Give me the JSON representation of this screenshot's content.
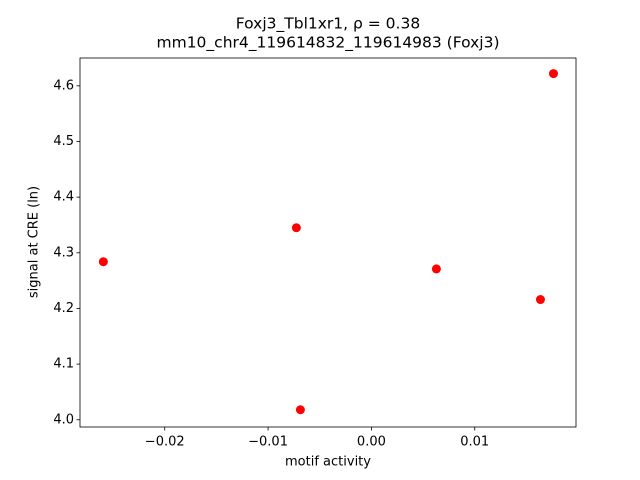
{
  "chart_data": {
    "type": "scatter",
    "title": [
      "Foxj3_Tbl1xr1, ρ = 0.38",
      "mm10_chr4_119614832_119614983 (Foxj3)"
    ],
    "xlabel": "motif activity",
    "ylabel": "signal at CRE (ln)",
    "color": "#ff0000",
    "x": [
      -0.02594,
      -0.00726,
      -0.00687,
      0.00629,
      0.01636,
      0.01762
    ],
    "values": [
      4.284,
      4.345,
      4.018,
      4.271,
      4.216,
      4.622
    ],
    "xlim": [
      -0.0282,
      0.0198
    ],
    "ylim": [
      3.987,
      4.65
    ],
    "xticks": [
      {
        "value": -0.02,
        "label": "−0.02"
      },
      {
        "value": -0.01,
        "label": "−0.01"
      },
      {
        "value": 0,
        "label": "0.00"
      },
      0.01
    ],
    "yticks": [
      {
        "value": 4.0,
        "label": "4.0"
      },
      4.1,
      4.2,
      4.3,
      4.4,
      4.5,
      4.6
    ],
    "grid": false
  }
}
